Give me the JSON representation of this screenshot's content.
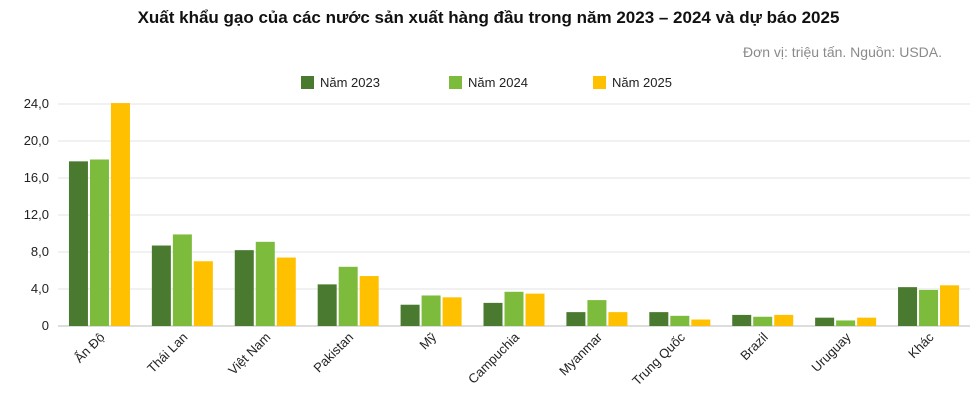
{
  "title": "Xuất khẩu gạo của các nước sản xuất hàng đầu trong năm 2023 – 2024 và dự báo 2025",
  "subtitle": "Đơn vị: triệu tấn. Nguồn: USDA.",
  "chart_data": {
    "type": "bar",
    "categories": [
      "Ấn Độ",
      "Thái Lan",
      "Việt Nam",
      "Pakistan",
      "Mỹ",
      "Campuchia",
      "Myanmar",
      "Trung Quốc",
      "Brazil",
      "Uruguay",
      "Khác"
    ],
    "series": [
      {
        "name": "Năm 2023",
        "color": "#4a7a2f",
        "values": [
          17.8,
          8.7,
          8.2,
          4.5,
          2.3,
          2.5,
          1.5,
          1.5,
          1.2,
          0.9,
          4.2
        ]
      },
      {
        "name": "Năm 2024",
        "color": "#7dbb3c",
        "values": [
          18.0,
          9.9,
          9.1,
          6.4,
          3.3,
          3.7,
          2.8,
          1.1,
          1.0,
          0.6,
          3.9
        ]
      },
      {
        "name": "Năm 2025",
        "color": "#ffc000",
        "values": [
          24.1,
          7.0,
          7.4,
          5.4,
          3.1,
          3.5,
          1.5,
          0.7,
          1.2,
          0.9,
          4.4
        ]
      }
    ],
    "ylim": [
      0,
      24
    ],
    "yticks": [
      "0",
      "4,0",
      "8,0",
      "12,0",
      "16,0",
      "20,0",
      "24,0"
    ],
    "ytick_values": [
      0,
      4,
      8,
      12,
      16,
      20,
      24
    ],
    "grid": true,
    "legend_position": "top-center"
  }
}
